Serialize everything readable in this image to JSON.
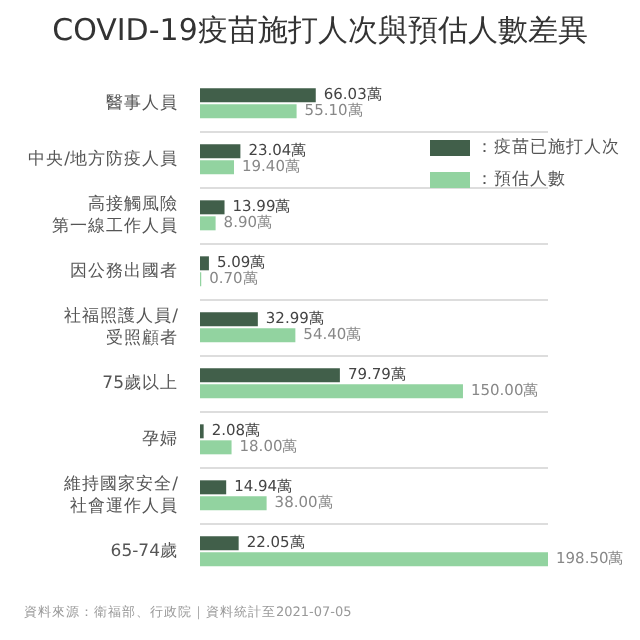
{
  "chart_data": {
    "type": "bar",
    "orientation": "horizontal",
    "title": "COVID-19疫苗施打人次與預估人數差異",
    "categories": [
      "醫事人員",
      "中央/地方防疫人員",
      "高接觸風險第一線工作人員",
      "因公務出國者",
      "社福照護人員/受照顧者",
      "75歲以上",
      "孕婦",
      "維持國家安全/社會運作人員",
      "65-74歲"
    ],
    "series": [
      {
        "name": "：疫苗已施打人次",
        "color": "#415f4a",
        "values": [
          66.03,
          23.04,
          13.99,
          5.09,
          32.99,
          79.79,
          2.08,
          14.94,
          22.05
        ],
        "value_labels": [
          "66.03萬",
          "23.04萬",
          "13.99萬",
          "5.09萬",
          "32.99萬",
          "79.79萬",
          "2.08萬",
          "14.94萬",
          "22.05萬"
        ]
      },
      {
        "name": "：預估人數",
        "color": "#92d3a0",
        "values": [
          55.1,
          19.4,
          8.9,
          0.7,
          54.4,
          150.0,
          18.0,
          38.0,
          198.5
        ],
        "value_labels": [
          "55.10萬",
          "19.40萬",
          "8.90萬",
          "0.70萬",
          "54.40萬",
          "150.00萬",
          "18.00萬",
          "38.00萬",
          "198.50萬"
        ]
      }
    ],
    "legend": "top right",
    "grid": "y",
    "annotations": [
      "資料來源：衛福部、行政院｜資料統計至2021-07-05"
    ]
  }
}
